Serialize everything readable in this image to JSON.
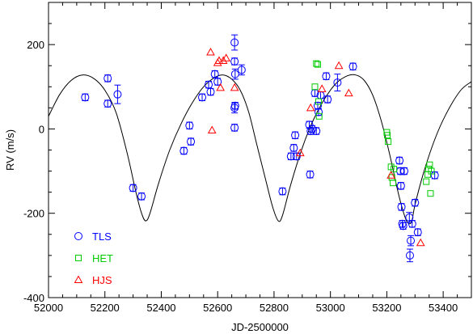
{
  "chart_data": {
    "type": "scatter",
    "title": "",
    "xlabel": "JD-2500000",
    "ylabel": "RV (m/s)",
    "xlim": [
      52000,
      53500
    ],
    "ylim": [
      -400,
      300
    ],
    "xticks": [
      52000,
      52200,
      52400,
      52600,
      52800,
      53000,
      53200,
      53400
    ],
    "yticks": [
      -400,
      -200,
      0,
      200
    ],
    "grid": false,
    "legend_position": "bottom-left",
    "series": [
      {
        "name": "TLS",
        "marker": "circle",
        "color": "#0000ff",
        "points": [
          {
            "x": 52130,
            "y": 75,
            "err": 8
          },
          {
            "x": 52210,
            "y": 60,
            "err": 8
          },
          {
            "x": 52210,
            "y": 120,
            "err": 8
          },
          {
            "x": 52245,
            "y": 82,
            "err": 22
          },
          {
            "x": 52300,
            "y": -140,
            "err": 8
          },
          {
            "x": 52330,
            "y": -160,
            "err": 8
          },
          {
            "x": 52480,
            "y": -52,
            "err": 8
          },
          {
            "x": 52500,
            "y": 8,
            "err": 8
          },
          {
            "x": 52505,
            "y": -30,
            "err": 8
          },
          {
            "x": 52545,
            "y": 75,
            "err": 8
          },
          {
            "x": 52568,
            "y": 105,
            "err": 8
          },
          {
            "x": 52575,
            "y": 88,
            "err": 8
          },
          {
            "x": 52590,
            "y": 130,
            "err": 8
          },
          {
            "x": 52600,
            "y": 112,
            "err": 8
          },
          {
            "x": 52660,
            "y": 205,
            "err": 18
          },
          {
            "x": 52660,
            "y": 160,
            "err": 8
          },
          {
            "x": 52662,
            "y": 130,
            "err": 12
          },
          {
            "x": 52660,
            "y": 50,
            "err": 12
          },
          {
            "x": 52662,
            "y": 55,
            "err": 8
          },
          {
            "x": 52660,
            "y": 3,
            "err": 8
          },
          {
            "x": 52685,
            "y": 140,
            "err": 12
          },
          {
            "x": 52830,
            "y": -148,
            "err": 8
          },
          {
            "x": 52860,
            "y": -65,
            "err": 8
          },
          {
            "x": 52870,
            "y": -45,
            "err": 8
          },
          {
            "x": 52875,
            "y": -15,
            "err": 8
          },
          {
            "x": 52880,
            "y": -65,
            "err": 8
          },
          {
            "x": 52925,
            "y": 10,
            "err": 8
          },
          {
            "x": 52928,
            "y": -108,
            "err": 8
          },
          {
            "x": 52930,
            "y": -5,
            "err": 8
          },
          {
            "x": 52935,
            "y": 0,
            "err": 8
          },
          {
            "x": 52945,
            "y": 85,
            "err": 8
          },
          {
            "x": 52950,
            "y": -5,
            "err": 8
          },
          {
            "x": 52955,
            "y": 55,
            "err": 8
          },
          {
            "x": 52958,
            "y": 40,
            "err": 8
          },
          {
            "x": 52965,
            "y": 80,
            "err": 8
          },
          {
            "x": 52985,
            "y": 125,
            "err": 8
          },
          {
            "x": 52990,
            "y": 70,
            "err": 8
          },
          {
            "x": 53025,
            "y": 110,
            "err": 20
          },
          {
            "x": 53080,
            "y": 148,
            "err": 8
          },
          {
            "x": 53245,
            "y": -75,
            "err": 8
          },
          {
            "x": 53248,
            "y": -100,
            "err": 8
          },
          {
            "x": 53250,
            "y": -135,
            "err": 8
          },
          {
            "x": 53252,
            "y": -185,
            "err": 8
          },
          {
            "x": 53255,
            "y": -225,
            "err": 8
          },
          {
            "x": 53258,
            "y": -230,
            "err": 8
          },
          {
            "x": 53262,
            "y": -100,
            "err": 8
          },
          {
            "x": 53280,
            "y": -210,
            "err": 12
          },
          {
            "x": 53282,
            "y": -300,
            "err": 15
          },
          {
            "x": 53285,
            "y": -265,
            "err": 12
          },
          {
            "x": 53290,
            "y": -225,
            "err": 8
          },
          {
            "x": 53300,
            "y": -175,
            "err": 8
          },
          {
            "x": 53310,
            "y": -245,
            "err": 8
          },
          {
            "x": 53370,
            "y": -110,
            "err": 8
          }
        ]
      },
      {
        "name": "HET",
        "marker": "square",
        "color": "#00cc00",
        "points": [
          {
            "x": 52945,
            "y": 100
          },
          {
            "x": 52950,
            "y": 155
          },
          {
            "x": 52955,
            "y": 153
          },
          {
            "x": 52958,
            "y": 65
          },
          {
            "x": 52960,
            "y": 30
          },
          {
            "x": 53200,
            "y": -8
          },
          {
            "x": 53202,
            "y": -15
          },
          {
            "x": 53205,
            "y": -30
          },
          {
            "x": 53215,
            "y": -90
          },
          {
            "x": 53218,
            "y": -115
          },
          {
            "x": 53222,
            "y": -128
          },
          {
            "x": 53225,
            "y": -95
          },
          {
            "x": 53340,
            "y": -125
          },
          {
            "x": 53345,
            "y": -108
          },
          {
            "x": 53348,
            "y": -95
          },
          {
            "x": 53352,
            "y": -85
          },
          {
            "x": 53355,
            "y": -153
          },
          {
            "x": 53358,
            "y": -100
          }
        ]
      },
      {
        "name": "HJS",
        "marker": "triangle",
        "color": "#ff0000",
        "points": [
          {
            "x": 52575,
            "y": 182
          },
          {
            "x": 52580,
            "y": -3
          },
          {
            "x": 52600,
            "y": 157
          },
          {
            "x": 52605,
            "y": 162
          },
          {
            "x": 52610,
            "y": 98
          },
          {
            "x": 52620,
            "y": 162
          },
          {
            "x": 52630,
            "y": 168
          },
          {
            "x": 52660,
            "y": 98
          },
          {
            "x": 52893,
            "y": -57
          },
          {
            "x": 52930,
            "y": 50
          },
          {
            "x": 52970,
            "y": 95
          },
          {
            "x": 53030,
            "y": 150
          },
          {
            "x": 53065,
            "y": 85
          },
          {
            "x": 53215,
            "y": -110
          },
          {
            "x": 53320,
            "y": -270
          }
        ]
      }
    ],
    "model_curve": {
      "name": "",
      "color": "#000000",
      "x": [
        52000,
        52040,
        52080,
        52120,
        52160,
        52200,
        52240,
        52280,
        52310,
        52330,
        52345,
        52360,
        52390,
        52430,
        52470,
        52510,
        52550,
        52590,
        52620,
        52650,
        52680,
        52710,
        52740,
        52770,
        52795,
        52815,
        52830,
        52860,
        52900,
        52940,
        52980,
        53020,
        53060,
        53090,
        53120,
        53150,
        53180,
        53210,
        53240,
        53265,
        53280,
        53290,
        53300,
        53330,
        53370,
        53410,
        53460,
        53500
      ],
      "y": [
        30,
        82,
        115,
        128,
        120,
        92,
        38,
        -60,
        -150,
        -200,
        -218,
        -200,
        -130,
        -50,
        12,
        62,
        100,
        122,
        128,
        118,
        92,
        40,
        -40,
        -120,
        -185,
        -218,
        -205,
        -130,
        -45,
        22,
        72,
        108,
        126,
        128,
        115,
        80,
        20,
        -60,
        -150,
        -210,
        -225,
        -215,
        -180,
        -105,
        -25,
        35,
        90,
        112
      ]
    }
  }
}
